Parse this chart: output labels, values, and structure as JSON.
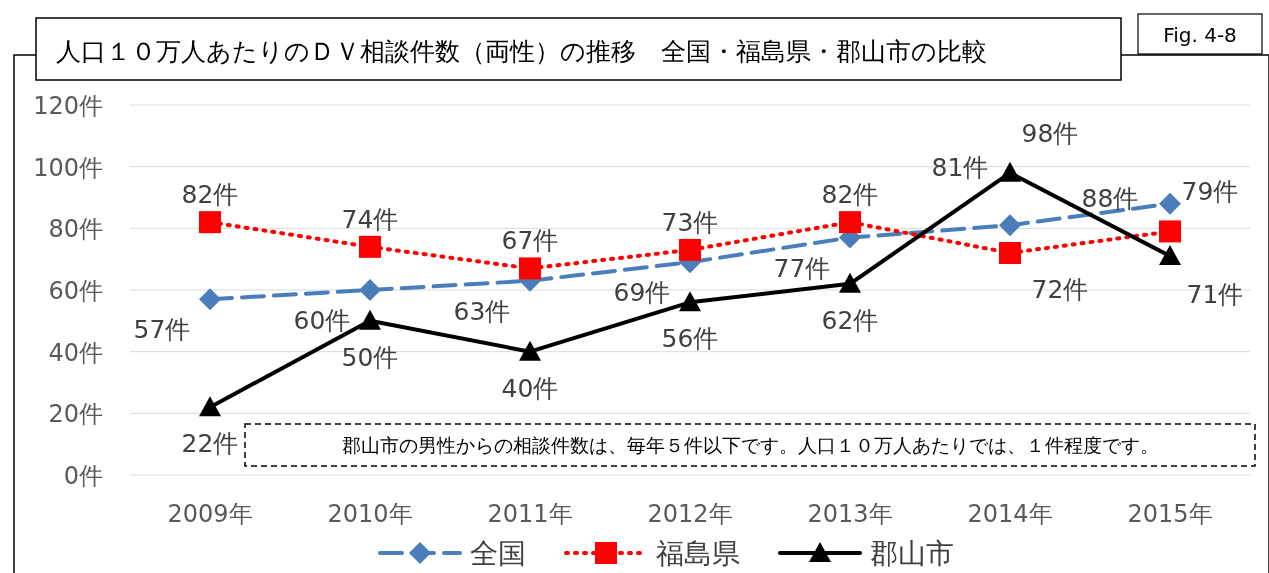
{
  "chart_data": {
    "type": "line",
    "title": "人口１０万人あたりのＤＶ相談件数（両性）の推移　全国・福島県・郡山市の比較",
    "annotations": [
      "Fig. 4-8",
      "郡山市の男性からの相談件数は、毎年５件以下です。人口１０万人あたりでは、１件程度です。"
    ],
    "categories": [
      "2009年",
      "2010年",
      "2011年",
      "2012年",
      "2013年",
      "2014年",
      "2015年"
    ],
    "series": [
      {
        "name": "全国",
        "color": "#4a7ebb",
        "marker": "diamond",
        "line_style": "dashed",
        "values": [
          57,
          60,
          63,
          69,
          77,
          81,
          88
        ],
        "value_labels": [
          "57件",
          "60件",
          "63件",
          "69件",
          "77件",
          "81件",
          "88件"
        ]
      },
      {
        "name": "福島県",
        "color": "#ff0000",
        "marker": "square",
        "line_style": "dotted",
        "values": [
          82,
          74,
          67,
          73,
          82,
          72,
          79
        ],
        "value_labels": [
          "82件",
          "74件",
          "67件",
          "73件",
          "82件",
          "72件",
          "79件"
        ]
      },
      {
        "name": "郡山市",
        "color": "#000000",
        "marker": "triangle",
        "line_style": "solid",
        "values": [
          22,
          50,
          40,
          56,
          62,
          98,
          71
        ],
        "value_labels": [
          "22件",
          "50件",
          "40件",
          "56件",
          "62件",
          "98件",
          "71件"
        ]
      }
    ],
    "ylim": [
      0,
      120
    ],
    "yticks": [
      {
        "value": 0,
        "label": "0件"
      },
      {
        "value": 20,
        "label": "20件"
      },
      {
        "value": 40,
        "label": "40件"
      },
      {
        "value": 60,
        "label": "60件"
      },
      {
        "value": 80,
        "label": "80件"
      },
      {
        "value": 100,
        "label": "100件"
      },
      {
        "value": 120,
        "label": "120件"
      }
    ],
    "grid": "y",
    "legend": "bottom"
  }
}
